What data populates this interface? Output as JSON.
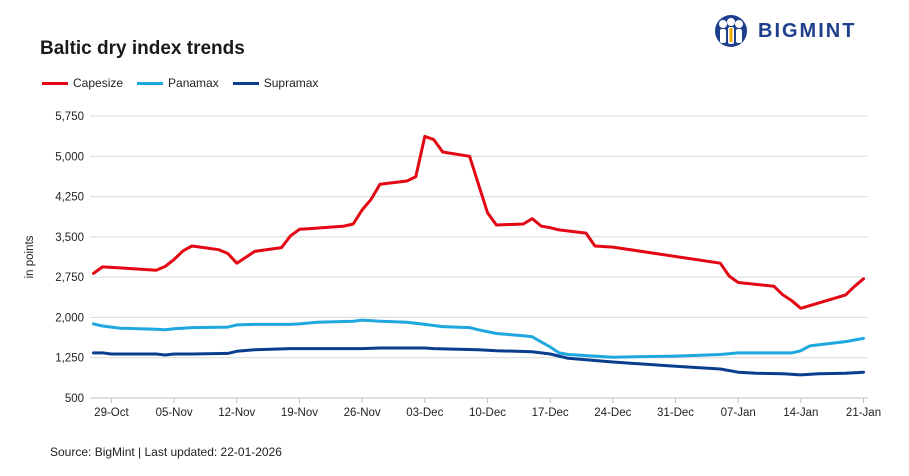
{
  "brand": {
    "name": "BIGMINT",
    "logo_color": "#1d3f8c"
  },
  "footer": {
    "source": "Source: BigMint | Last updated: 22-01-2026"
  },
  "chart_data": {
    "type": "line",
    "title": "Baltic dry index trends",
    "ylabel": "in points",
    "xlabel": "",
    "ylim": [
      500,
      5750
    ],
    "yticks": [
      500,
      1250,
      2000,
      2750,
      3500,
      4250,
      5000,
      5750
    ],
    "ytick_labels": [
      "500",
      "1,250",
      "2,000",
      "2,750",
      "3,500",
      "4,250",
      "5,000",
      "5,750"
    ],
    "xticks": [
      "29-Oct",
      "05-Nov",
      "12-Nov",
      "19-Nov",
      "26-Nov",
      "03-Dec",
      "10-Dec",
      "17-Dec",
      "24-Dec",
      "31-Dec",
      "07-Jan",
      "14-Jan",
      "21-Jan"
    ],
    "grid": "horizontal",
    "legend_position": "top-left",
    "series": [
      {
        "name": "Capesize",
        "color": "#e30613",
        "points": [
          [
            "27-Oct",
            2820
          ],
          [
            "28-Oct",
            2940
          ],
          [
            "31-Oct",
            2910
          ],
          [
            "03-Nov",
            2880
          ],
          [
            "04-Nov",
            2950
          ],
          [
            "05-Nov",
            3080
          ],
          [
            "06-Nov",
            3240
          ],
          [
            "07-Nov",
            3330
          ],
          [
            "10-Nov",
            3260
          ],
          [
            "11-Nov",
            3190
          ],
          [
            "12-Nov",
            3010
          ],
          [
            "14-Nov",
            3230
          ],
          [
            "17-Nov",
            3300
          ],
          [
            "18-Nov",
            3520
          ],
          [
            "19-Nov",
            3640
          ],
          [
            "20-Nov",
            3650
          ],
          [
            "24-Nov",
            3700
          ],
          [
            "25-Nov",
            3740
          ],
          [
            "26-Nov",
            4000
          ],
          [
            "27-Nov",
            4200
          ],
          [
            "28-Nov",
            4480
          ],
          [
            "01-Dec",
            4540
          ],
          [
            "02-Dec",
            4620
          ],
          [
            "03-Dec",
            5370
          ],
          [
            "04-Dec",
            5310
          ],
          [
            "05-Dec",
            5080
          ],
          [
            "08-Dec",
            5000
          ],
          [
            "10-Dec",
            3950
          ],
          [
            "11-Dec",
            3720
          ],
          [
            "14-Dec",
            3740
          ],
          [
            "15-Dec",
            3840
          ],
          [
            "16-Dec",
            3700
          ],
          [
            "17-Dec",
            3670
          ],
          [
            "18-Dec",
            3630
          ],
          [
            "21-Dec",
            3570
          ],
          [
            "22-Dec",
            3330
          ],
          [
            "24-Dec",
            3310
          ],
          [
            "05-Jan",
            3010
          ],
          [
            "06-Jan",
            2770
          ],
          [
            "07-Jan",
            2650
          ],
          [
            "11-Jan",
            2580
          ],
          [
            "12-Jan",
            2420
          ],
          [
            "13-Jan",
            2310
          ],
          [
            "14-Jan",
            2170
          ],
          [
            "19-Jan",
            2420
          ],
          [
            "20-Jan",
            2580
          ],
          [
            "21-Jan",
            2720
          ]
        ]
      },
      {
        "name": "Panamax",
        "color": "#1fa7e0",
        "points": [
          [
            "27-Oct",
            1880
          ],
          [
            "28-Oct",
            1840
          ],
          [
            "30-Oct",
            1800
          ],
          [
            "03-Nov",
            1780
          ],
          [
            "04-Nov",
            1770
          ],
          [
            "05-Nov",
            1790
          ],
          [
            "07-Nov",
            1810
          ],
          [
            "11-Nov",
            1820
          ],
          [
            "12-Nov",
            1860
          ],
          [
            "14-Nov",
            1870
          ],
          [
            "18-Nov",
            1870
          ],
          [
            "19-Nov",
            1880
          ],
          [
            "21-Nov",
            1910
          ],
          [
            "25-Nov",
            1930
          ],
          [
            "26-Nov",
            1950
          ],
          [
            "28-Nov",
            1930
          ],
          [
            "01-Dec",
            1910
          ],
          [
            "03-Dec",
            1870
          ],
          [
            "05-Dec",
            1830
          ],
          [
            "08-Dec",
            1810
          ],
          [
            "09-Dec",
            1770
          ],
          [
            "11-Dec",
            1700
          ],
          [
            "14-Dec",
            1660
          ],
          [
            "15-Dec",
            1640
          ],
          [
            "17-Dec",
            1450
          ],
          [
            "18-Dec",
            1340
          ],
          [
            "19-Dec",
            1310
          ],
          [
            "24-Dec",
            1260
          ],
          [
            "31-Dec",
            1280
          ],
          [
            "05-Jan",
            1310
          ],
          [
            "07-Jan",
            1340
          ],
          [
            "13-Jan",
            1340
          ],
          [
            "14-Jan",
            1380
          ],
          [
            "15-Jan",
            1470
          ],
          [
            "17-Jan",
            1510
          ],
          [
            "19-Jan",
            1550
          ],
          [
            "21-Jan",
            1610
          ]
        ]
      },
      {
        "name": "Supramax",
        "color": "#0b3d8e",
        "points": [
          [
            "27-Oct",
            1340
          ],
          [
            "28-Oct",
            1340
          ],
          [
            "29-Oct",
            1320
          ],
          [
            "03-Nov",
            1320
          ],
          [
            "04-Nov",
            1300
          ],
          [
            "05-Nov",
            1320
          ],
          [
            "07-Nov",
            1320
          ],
          [
            "11-Nov",
            1330
          ],
          [
            "12-Nov",
            1370
          ],
          [
            "14-Nov",
            1400
          ],
          [
            "18-Nov",
            1420
          ],
          [
            "26-Nov",
            1420
          ],
          [
            "28-Nov",
            1430
          ],
          [
            "03-Dec",
            1430
          ],
          [
            "04-Dec",
            1420
          ],
          [
            "09-Dec",
            1400
          ],
          [
            "11-Dec",
            1380
          ],
          [
            "15-Dec",
            1360
          ],
          [
            "17-Dec",
            1320
          ],
          [
            "19-Dec",
            1240
          ],
          [
            "24-Dec",
            1170
          ],
          [
            "31-Dec",
            1090
          ],
          [
            "05-Jan",
            1040
          ],
          [
            "07-Jan",
            980
          ],
          [
            "09-Jan",
            960
          ],
          [
            "12-Jan",
            950
          ],
          [
            "14-Jan",
            930
          ],
          [
            "16-Jan",
            950
          ],
          [
            "19-Jan",
            960
          ],
          [
            "21-Jan",
            980
          ]
        ]
      }
    ]
  }
}
